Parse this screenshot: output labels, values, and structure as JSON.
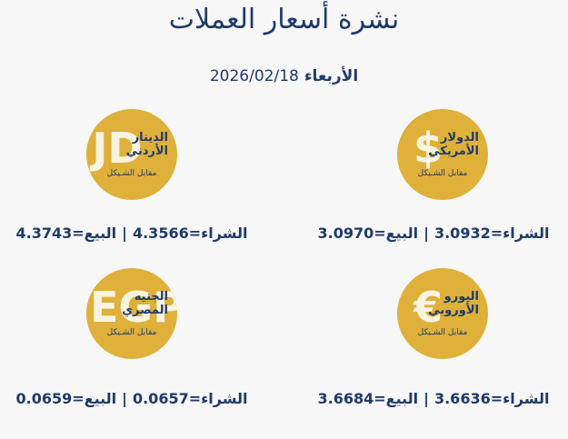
{
  "header": {
    "title": "نشرة أسعار العملات",
    "day": "الأربعاء",
    "date": "2026/02/18"
  },
  "currencies": [
    {
      "symbol": "$",
      "name_line1": "الدولار",
      "name_line2": "الأمريكي",
      "subtitle": "مقابل الشـيكل",
      "buy_label": "الشراء=",
      "buy": "3.0932",
      "separator": "|",
      "sell_label": "البيع=",
      "sell": "3.0970"
    },
    {
      "symbol": "JD",
      "name_line1": "الدينار",
      "name_line2": "الأردني",
      "subtitle": "مقابل الشـيكل",
      "buy_label": "الشراء=",
      "buy": "4.3566",
      "separator": "|",
      "sell_label": "البيع=",
      "sell": "4.3743"
    },
    {
      "symbol": "€",
      "name_line1": "اليورو",
      "name_line2": "الأوروبي",
      "subtitle": "مقابل الشـيكل",
      "buy_label": "الشراء=",
      "buy": "3.6636",
      "separator": "|",
      "sell_label": "البيع=",
      "sell": "3.6684"
    },
    {
      "symbol": "EGP",
      "name_line1": "الجنيه",
      "name_line2": "المصري",
      "subtitle": "مقابل الشـيكل",
      "buy_label": "الشراء=",
      "buy": "0.0657",
      "separator": "|",
      "sell_label": "البيع=",
      "sell": "0.0659"
    }
  ]
}
